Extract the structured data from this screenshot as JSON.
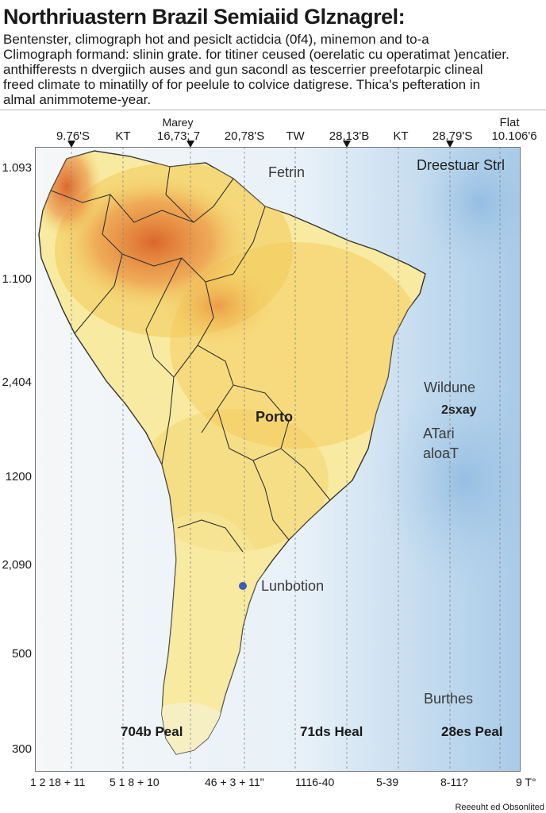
{
  "title": "Northriuastern Brazil Semiaiid Glznagrel:",
  "description": [
    "Bentenster, climograph hot and pesiclt actidcia (0f4), minemon and to-a",
    "Climograph formand: slinin grate. for titiner ceused (oerelatic cu operatimat )encatier.",
    "anthifferests n dvergiich auses and gun sacondl as tescerrier preefotarpic clineal",
    "freed climate to minatilly of for peelule to colvice datigrese. Thica's pefteration in",
    "almal animmoteme-year."
  ],
  "top_labels": {
    "left": "Marey",
    "right": "Flat"
  },
  "header_labels": [
    "9.76'S",
    "KT",
    "16,73; 7",
    "20,78'S",
    "TW",
    "28,13'B",
    "KT",
    "28.79'S",
    "10.106'6"
  ],
  "y_labels": [
    "1.093",
    "1.100",
    "2,404",
    "1200",
    "2,090",
    "500",
    "300"
  ],
  "x_labels": [
    "1 2 18 + 11",
    "5 1 8 + 10",
    "46 + 3 + 11\"",
    "1116-40",
    "5-39",
    "8-11?",
    "9 T°"
  ],
  "map_labels": {
    "fetrin": "Fetrin",
    "dreestuar": "Dreestuar Strl",
    "wildune": "Wildune",
    "twosxay": "2sxay",
    "atari": "ATari",
    "aloot": "aloaT",
    "porto": "Porto",
    "lunbotion": "Lunbotion",
    "burthes": "Burthes"
  },
  "peak_labels": [
    "704b Peal",
    "71ds Heal",
    "28es Peal"
  ],
  "credit": "Reeeuht ed Obsonlited",
  "colors": {
    "ocean_light": "#e8f1f8",
    "ocean_deep": "#a9cbe8",
    "land_pale": "#f8eaa0",
    "land_mid": "#f3c95a",
    "land_hot": "#e9843a",
    "land_hottest": "#d95a24",
    "border": "#333333"
  }
}
